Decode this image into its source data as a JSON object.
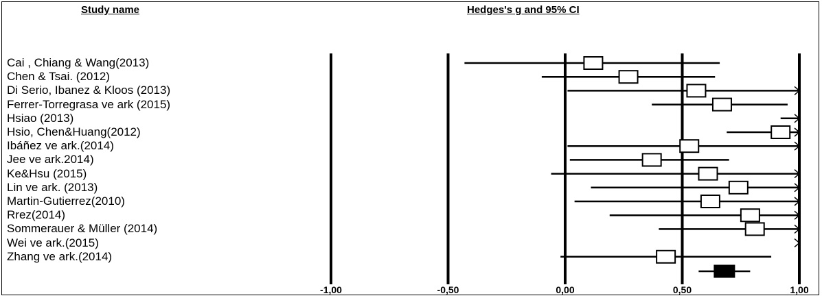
{
  "headers": {
    "study_name": "Study name",
    "effect_size": "Hedges's g and 95% CI"
  },
  "chart_data": {
    "type": "forest",
    "xlim": [
      -1.0,
      1.0
    ],
    "ticks": [
      {
        "value": -1.0,
        "label": "-1,00"
      },
      {
        "value": -0.5,
        "label": "-0,50"
      },
      {
        "value": 0.0,
        "label": "0,00"
      },
      {
        "value": 0.5,
        "label": "0,50"
      },
      {
        "value": 1.0,
        "label": "1,00"
      }
    ],
    "studies": [
      {
        "name": "Cai , Chiang & Wang(2013)",
        "g": 0.12,
        "lower": -0.43,
        "upper": 0.66
      },
      {
        "name": "Chen  & Tsai. (2012)",
        "g": 0.27,
        "lower": -0.1,
        "upper": 0.64
      },
      {
        "name": "Di Serio, Ibanez & Kloos (2013)",
        "g": 0.56,
        "lower": 0.01,
        "upper": 1.0,
        "arrow": true
      },
      {
        "name": "Ferrer-Torregrasa ve ark (2015)",
        "g": 0.67,
        "lower": 0.37,
        "upper": 0.95
      },
      {
        "name": "Hsiao  (2013)",
        "g": null,
        "lower": 0.92,
        "upper": 1.0,
        "arrow": true
      },
      {
        "name": "Hsio, Chen&Huang(2012)",
        "g": 0.92,
        "lower": 0.69,
        "upper": 1.0,
        "arrow": true
      },
      {
        "name": "Ibáñez ve ark.(2014)",
        "g": 0.53,
        "lower": 0.01,
        "upper": 1.0,
        "arrow": true
      },
      {
        "name": "Jee ve ark.2014)",
        "g": 0.37,
        "lower": 0.02,
        "upper": 0.7
      },
      {
        "name": "Ke&Hsu (2015)",
        "g": 0.61,
        "lower": -0.06,
        "upper": 1.0,
        "arrow": true
      },
      {
        "name": "Lin ve ark. (2013)",
        "g": 0.74,
        "lower": 0.11,
        "upper": 1.0,
        "arrow": true
      },
      {
        "name": "Martin-Gutierrez(2010)",
        "g": 0.62,
        "lower": 0.04,
        "upper": 1.0,
        "arrow": true
      },
      {
        "name": "Rrez(2014)",
        "g": 0.79,
        "lower": 0.19,
        "upper": 1.0,
        "arrow": true
      },
      {
        "name": "Sommerauer & Müller (2014)",
        "g": 0.81,
        "lower": 0.4,
        "upper": 1.0,
        "arrow": true
      },
      {
        "name": "Wei ve ark.(2015)",
        "g": null,
        "lower": null,
        "upper": 1.0,
        "arrow": true
      },
      {
        "name": "Zhang ve ark.(2014)",
        "g": 0.43,
        "lower": -0.02,
        "upper": 0.88
      }
    ],
    "summary": {
      "g": 0.68,
      "lower": 0.57,
      "upper": 0.79
    }
  }
}
